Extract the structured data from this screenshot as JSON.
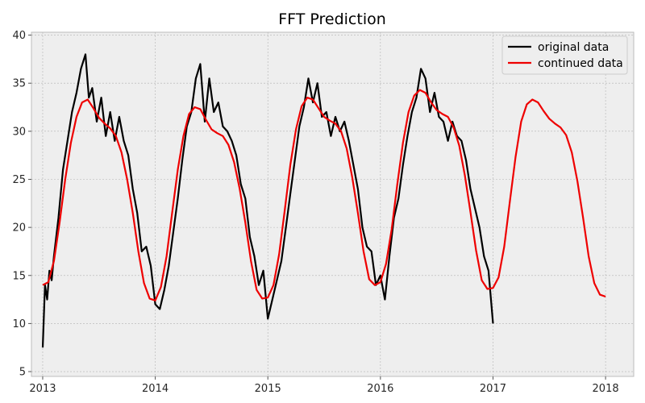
{
  "chart_data": {
    "type": "line",
    "title": "FFT Prediction",
    "xlabel": "",
    "ylabel": "",
    "xlim": [
      2012.9,
      2018.25
    ],
    "ylim": [
      4.5,
      40.3
    ],
    "x_ticks": [
      2013,
      2014,
      2015,
      2016,
      2017,
      2018
    ],
    "x_tick_labels": [
      "2013",
      "2014",
      "2015",
      "2016",
      "2017",
      "2018"
    ],
    "y_ticks": [
      5,
      10,
      15,
      20,
      25,
      30,
      35,
      40
    ],
    "y_tick_labels": [
      "5",
      "10",
      "15",
      "20",
      "25",
      "30",
      "35",
      "40"
    ],
    "grid": true,
    "legend": "top-right",
    "series": [
      {
        "name": "original data",
        "color": "#000000",
        "x": [
          2013.0,
          2013.02,
          2013.04,
          2013.06,
          2013.08,
          2013.1,
          2013.14,
          2013.18,
          2013.22,
          2013.26,
          2013.3,
          2013.34,
          2013.38,
          2013.41,
          2013.44,
          2013.48,
          2013.52,
          2013.56,
          2013.6,
          2013.64,
          2013.68,
          2013.72,
          2013.76,
          2013.8,
          2013.84,
          2013.88,
          2013.92,
          2013.96,
          2014.0,
          2014.04,
          2014.08,
          2014.12,
          2014.16,
          2014.2,
          2014.24,
          2014.28,
          2014.32,
          2014.36,
          2014.4,
          2014.44,
          2014.48,
          2014.52,
          2014.56,
          2014.6,
          2014.64,
          2014.68,
          2014.72,
          2014.76,
          2014.8,
          2014.84,
          2014.88,
          2014.92,
          2014.96,
          2015.0,
          2015.04,
          2015.08,
          2015.12,
          2015.16,
          2015.2,
          2015.24,
          2015.28,
          2015.32,
          2015.36,
          2015.4,
          2015.44,
          2015.48,
          2015.52,
          2015.56,
          2015.6,
          2015.64,
          2015.68,
          2015.72,
          2015.76,
          2015.8,
          2015.84,
          2015.88,
          2015.92,
          2015.96,
          2016.0,
          2016.04,
          2016.08,
          2016.12,
          2016.16,
          2016.2,
          2016.24,
          2016.28,
          2016.32,
          2016.36,
          2016.4,
          2016.44,
          2016.48,
          2016.52,
          2016.56,
          2016.6,
          2016.64,
          2016.68,
          2016.72,
          2016.76,
          2016.8,
          2016.84,
          2016.88,
          2016.92,
          2016.96,
          2017.0
        ],
        "y": [
          7.5,
          14.0,
          12.5,
          15.5,
          14.5,
          17.0,
          21.0,
          26.0,
          29.0,
          32.0,
          34.0,
          36.5,
          38.0,
          33.5,
          34.5,
          31.0,
          33.5,
          29.5,
          32.0,
          29.0,
          31.5,
          29.0,
          27.5,
          24.0,
          21.5,
          17.5,
          18.0,
          16.0,
          12.0,
          11.5,
          13.5,
          16.0,
          19.5,
          23.0,
          27.0,
          30.5,
          32.0,
          35.5,
          37.0,
          31.0,
          35.5,
          32.0,
          33.0,
          30.5,
          30.0,
          29.0,
          27.5,
          24.5,
          23.0,
          19.0,
          17.0,
          14.0,
          15.5,
          10.5,
          12.5,
          14.5,
          16.5,
          20.0,
          23.5,
          27.0,
          30.5,
          32.5,
          35.5,
          33.0,
          35.0,
          31.5,
          32.0,
          29.5,
          31.5,
          30.0,
          31.0,
          29.0,
          26.5,
          24.0,
          20.0,
          18.0,
          17.5,
          14.0,
          15.0,
          12.5,
          17.0,
          21.0,
          23.0,
          26.5,
          29.5,
          32.0,
          33.5,
          36.5,
          35.5,
          32.0,
          34.0,
          31.5,
          31.0,
          29.0,
          31.0,
          29.5,
          29.0,
          27.0,
          24.0,
          22.0,
          20.0,
          17.0,
          15.5,
          10.0
        ]
      },
      {
        "name": "continued data",
        "color": "#ee0000",
        "x": [
          2013.0,
          2013.05,
          2013.1,
          2013.15,
          2013.2,
          2013.25,
          2013.3,
          2013.35,
          2013.4,
          2013.45,
          2013.5,
          2013.55,
          2013.6,
          2013.65,
          2013.7,
          2013.75,
          2013.8,
          2013.85,
          2013.9,
          2013.95,
          2014.0,
          2014.05,
          2014.1,
          2014.15,
          2014.2,
          2014.25,
          2014.3,
          2014.35,
          2014.4,
          2014.45,
          2014.5,
          2014.55,
          2014.6,
          2014.65,
          2014.7,
          2014.75,
          2014.8,
          2014.85,
          2014.9,
          2014.95,
          2015.0,
          2015.05,
          2015.1,
          2015.15,
          2015.2,
          2015.25,
          2015.3,
          2015.35,
          2015.4,
          2015.45,
          2015.5,
          2015.55,
          2015.6,
          2015.65,
          2015.7,
          2015.75,
          2015.8,
          2015.85,
          2015.9,
          2015.95,
          2016.0,
          2016.05,
          2016.1,
          2016.15,
          2016.2,
          2016.25,
          2016.3,
          2016.35,
          2016.4,
          2016.45,
          2016.5,
          2016.55,
          2016.6,
          2016.65,
          2016.7,
          2016.75,
          2016.8,
          2016.85,
          2016.9,
          2016.95,
          2017.0,
          2017.05,
          2017.1,
          2017.15,
          2017.2,
          2017.25,
          2017.3,
          2017.35,
          2017.4,
          2017.45,
          2017.5,
          2017.55,
          2017.6,
          2017.65,
          2017.7,
          2017.75,
          2017.8,
          2017.85,
          2017.9,
          2017.95,
          2018.0
        ],
        "y": [
          14.0,
          14.3,
          16.5,
          20.5,
          25.0,
          28.8,
          31.5,
          33.0,
          33.3,
          32.4,
          31.4,
          30.8,
          30.3,
          29.5,
          27.8,
          25.0,
          21.5,
          17.5,
          14.2,
          12.6,
          12.4,
          13.8,
          17.0,
          21.5,
          26.0,
          29.5,
          31.8,
          32.5,
          32.3,
          31.2,
          30.2,
          29.8,
          29.5,
          28.6,
          26.8,
          24.0,
          20.5,
          16.5,
          13.5,
          12.6,
          12.7,
          14.0,
          17.2,
          21.8,
          26.5,
          30.2,
          32.6,
          33.5,
          33.3,
          32.4,
          31.5,
          31.1,
          30.8,
          30.0,
          28.2,
          25.2,
          21.5,
          17.5,
          14.6,
          14.0,
          14.3,
          16.2,
          19.8,
          24.5,
          28.8,
          32.0,
          33.7,
          34.3,
          34.0,
          33.0,
          32.2,
          31.8,
          31.5,
          30.4,
          28.5,
          25.4,
          21.6,
          17.6,
          14.5,
          13.6,
          13.7,
          14.8,
          18.0,
          22.7,
          27.3,
          31.0,
          32.8,
          33.3,
          33.0,
          32.1,
          31.3,
          30.8,
          30.4,
          29.6,
          27.8,
          24.8,
          21.0,
          17.0,
          14.2,
          13.0,
          12.8
        ]
      }
    ]
  }
}
